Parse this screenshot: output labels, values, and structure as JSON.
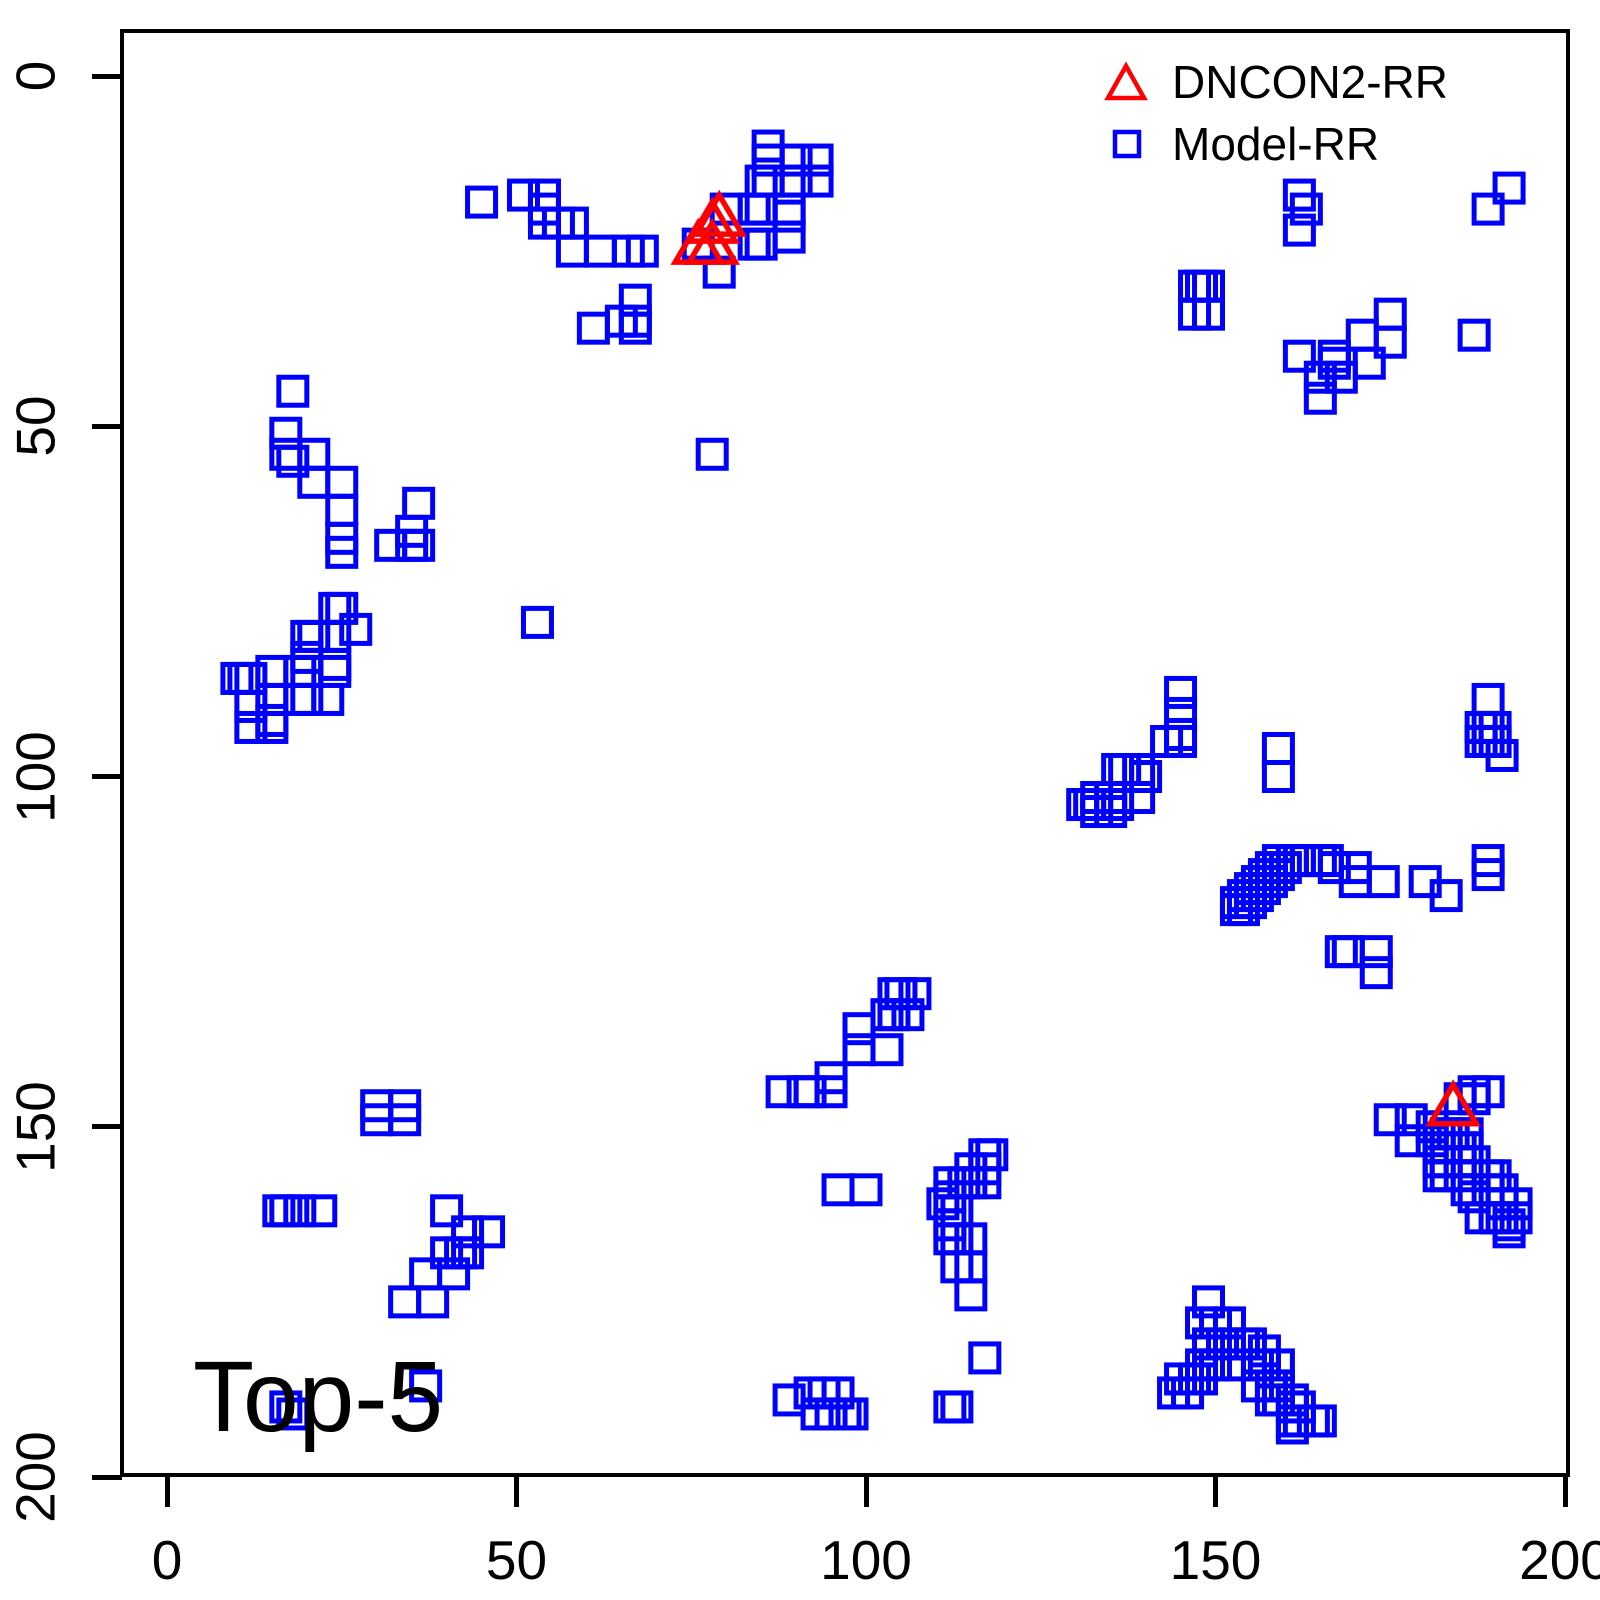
{
  "annotation": {
    "label": "Top-5"
  },
  "legend": {
    "items": [
      {
        "label": "DNCON2-RR",
        "marker": "open-triangle",
        "color": "#FF0000"
      },
      {
        "label": "Model-RR",
        "marker": "open-square",
        "color": "#0000FF"
      }
    ]
  },
  "axes": {
    "x": {
      "ticks": [
        0,
        50,
        100,
        150,
        200
      ],
      "range": [
        0,
        200
      ]
    },
    "y": {
      "ticks": [
        0,
        50,
        100,
        150,
        200
      ],
      "range": [
        0,
        200
      ],
      "inverted": true
    }
  },
  "chart_data": {
    "type": "scatter",
    "title": "",
    "annotation": "Top-5",
    "xlabel": "",
    "ylabel": "",
    "xlim": [
      0,
      200
    ],
    "ylim": [
      200,
      0
    ],
    "x_ticks": [
      0,
      50,
      100,
      150,
      200
    ],
    "y_ticks": [
      0,
      50,
      100,
      150,
      200
    ],
    "grid": false,
    "legend_position": "top-right",
    "series": [
      {
        "name": "DNCON2-RR",
        "marker": "open-triangle",
        "color": "#FF0000",
        "points": [
          [
            78,
            21
          ],
          [
            79,
            20
          ],
          [
            76,
            24
          ],
          [
            78,
            24
          ],
          [
            184,
            147
          ]
        ]
      },
      {
        "name": "Model-RR",
        "marker": "open-square",
        "color": "#0000FF",
        "points": [
          [
            45,
            18
          ],
          [
            51,
            17
          ],
          [
            54,
            17
          ],
          [
            54,
            19
          ],
          [
            54,
            21
          ],
          [
            56,
            21
          ],
          [
            58,
            21
          ],
          [
            58,
            25
          ],
          [
            62,
            25
          ],
          [
            66,
            25
          ],
          [
            68,
            25
          ],
          [
            61,
            36
          ],
          [
            65,
            35
          ],
          [
            67,
            32
          ],
          [
            67,
            35
          ],
          [
            67,
            36
          ],
          [
            76,
            24
          ],
          [
            79,
            28
          ],
          [
            80,
            19
          ],
          [
            84,
            19
          ],
          [
            85,
            19
          ],
          [
            89,
            19
          ],
          [
            89,
            20
          ],
          [
            84,
            24
          ],
          [
            85,
            24
          ],
          [
            89,
            23
          ],
          [
            85,
            15
          ],
          [
            86,
            15
          ],
          [
            90,
            15
          ],
          [
            93,
            15
          ],
          [
            86,
            10
          ],
          [
            86,
            12
          ],
          [
            90,
            12
          ],
          [
            93,
            12
          ],
          [
            78,
            54
          ],
          [
            53,
            78
          ],
          [
            162,
            17
          ],
          [
            163,
            19
          ],
          [
            162,
            22
          ],
          [
            189,
            19
          ],
          [
            192,
            16
          ],
          [
            147,
            30
          ],
          [
            148,
            30
          ],
          [
            149,
            30
          ],
          [
            147,
            34
          ],
          [
            149,
            34
          ],
          [
            175,
            34
          ],
          [
            171,
            37
          ],
          [
            175,
            38
          ],
          [
            187,
            37
          ],
          [
            162,
            40
          ],
          [
            167,
            40
          ],
          [
            167,
            41
          ],
          [
            172,
            41
          ],
          [
            165,
            43
          ],
          [
            168,
            43
          ],
          [
            165,
            46
          ],
          [
            18,
            45
          ],
          [
            17,
            51
          ],
          [
            17,
            54
          ],
          [
            18,
            55
          ],
          [
            21,
            54
          ],
          [
            21,
            58
          ],
          [
            25,
            58
          ],
          [
            25,
            62
          ],
          [
            25,
            66
          ],
          [
            25,
            68
          ],
          [
            36,
            61
          ],
          [
            35,
            65
          ],
          [
            32,
            67
          ],
          [
            35,
            67
          ],
          [
            36,
            67
          ],
          [
            24,
            76
          ],
          [
            25,
            76
          ],
          [
            27,
            79
          ],
          [
            20,
            80
          ],
          [
            21,
            80
          ],
          [
            24,
            80
          ],
          [
            20,
            83
          ],
          [
            24,
            84
          ],
          [
            24,
            85
          ],
          [
            19,
            85
          ],
          [
            20,
            85
          ],
          [
            15,
            85
          ],
          [
            10,
            86
          ],
          [
            11,
            86
          ],
          [
            12,
            86
          ],
          [
            15,
            89
          ],
          [
            19,
            89
          ],
          [
            20,
            89
          ],
          [
            23,
            89
          ],
          [
            12,
            90
          ],
          [
            15,
            92
          ],
          [
            12,
            93
          ],
          [
            15,
            93
          ],
          [
            145,
            88
          ],
          [
            145,
            91
          ],
          [
            145,
            94
          ],
          [
            143,
            95
          ],
          [
            145,
            95
          ],
          [
            159,
            96
          ],
          [
            159,
            100
          ],
          [
            136,
            99
          ],
          [
            137,
            99
          ],
          [
            139,
            99
          ],
          [
            140,
            100
          ],
          [
            139,
            103
          ],
          [
            133,
            103
          ],
          [
            135,
            103
          ],
          [
            131,
            104
          ],
          [
            132,
            104
          ],
          [
            136,
            104
          ],
          [
            133,
            105
          ],
          [
            135,
            105
          ],
          [
            189,
            89
          ],
          [
            188,
            93
          ],
          [
            189,
            93
          ],
          [
            190,
            93
          ],
          [
            188,
            95
          ],
          [
            189,
            95
          ],
          [
            190,
            95
          ],
          [
            191,
            97
          ],
          [
            153,
            118
          ],
          [
            153,
            119
          ],
          [
            154,
            117
          ],
          [
            154,
            119
          ],
          [
            155,
            116
          ],
          [
            155,
            118
          ],
          [
            156,
            115
          ],
          [
            156,
            117
          ],
          [
            157,
            114
          ],
          [
            157,
            116
          ],
          [
            158,
            113
          ],
          [
            158,
            115
          ],
          [
            159,
            112
          ],
          [
            159,
            114
          ],
          [
            160,
            113
          ],
          [
            161,
            112
          ],
          [
            162,
            112
          ],
          [
            163,
            112
          ],
          [
            165,
            112
          ],
          [
            166,
            112
          ],
          [
            167,
            113
          ],
          [
            170,
            113
          ],
          [
            170,
            115
          ],
          [
            174,
            115
          ],
          [
            183,
            117
          ],
          [
            189,
            112
          ],
          [
            189,
            114
          ],
          [
            180,
            115
          ],
          [
            168,
            125
          ],
          [
            169,
            125
          ],
          [
            173,
            125
          ],
          [
            173,
            128
          ],
          [
            104,
            131
          ],
          [
            105,
            131
          ],
          [
            107,
            131
          ],
          [
            103,
            134
          ],
          [
            104,
            134
          ],
          [
            106,
            134
          ],
          [
            99,
            136
          ],
          [
            99,
            139
          ],
          [
            103,
            139
          ],
          [
            95,
            143
          ],
          [
            88,
            145
          ],
          [
            91,
            145
          ],
          [
            92,
            145
          ],
          [
            95,
            145
          ],
          [
            30,
            147
          ],
          [
            30,
            149
          ],
          [
            34,
            147
          ],
          [
            34,
            149
          ],
          [
            16,
            162
          ],
          [
            17,
            162
          ],
          [
            19,
            162
          ],
          [
            22,
            162
          ],
          [
            40,
            162
          ],
          [
            43,
            165
          ],
          [
            46,
            165
          ],
          [
            40,
            168
          ],
          [
            42,
            168
          ],
          [
            43,
            168
          ],
          [
            37,
            171
          ],
          [
            41,
            171
          ],
          [
            34,
            175
          ],
          [
            38,
            175
          ],
          [
            117,
            154
          ],
          [
            118,
            154
          ],
          [
            115,
            156
          ],
          [
            117,
            156
          ],
          [
            112,
            158
          ],
          [
            114,
            158
          ],
          [
            115,
            158
          ],
          [
            117,
            158
          ],
          [
            112,
            160
          ],
          [
            111,
            161
          ],
          [
            113,
            162
          ],
          [
            112,
            164
          ],
          [
            112,
            166
          ],
          [
            113,
            166
          ],
          [
            115,
            166
          ],
          [
            113,
            170
          ],
          [
            115,
            170
          ],
          [
            115,
            174
          ],
          [
            96,
            159
          ],
          [
            100,
            159
          ],
          [
            117,
            183
          ],
          [
            149,
            175
          ],
          [
            148,
            178
          ],
          [
            150,
            178
          ],
          [
            152,
            178
          ],
          [
            149,
            181
          ],
          [
            151,
            181
          ],
          [
            152,
            181
          ],
          [
            154,
            181
          ],
          [
            155,
            181
          ],
          [
            157,
            182
          ],
          [
            148,
            184
          ],
          [
            149,
            184
          ],
          [
            150,
            184
          ],
          [
            152,
            184
          ],
          [
            156,
            184
          ],
          [
            157,
            184
          ],
          [
            159,
            184
          ],
          [
            145,
            186
          ],
          [
            147,
            186
          ],
          [
            148,
            186
          ],
          [
            144,
            188
          ],
          [
            146,
            188
          ],
          [
            156,
            187
          ],
          [
            158,
            187
          ],
          [
            159,
            187
          ],
          [
            158,
            189
          ],
          [
            159,
            189
          ],
          [
            161,
            189
          ],
          [
            161,
            190
          ],
          [
            162,
            190
          ],
          [
            161,
            192
          ],
          [
            162,
            192
          ],
          [
            164,
            192
          ],
          [
            165,
            192
          ],
          [
            161,
            193
          ],
          [
            175,
            149
          ],
          [
            178,
            149
          ],
          [
            181,
            150
          ],
          [
            178,
            152
          ],
          [
            181,
            152
          ],
          [
            183,
            151
          ],
          [
            184,
            151
          ],
          [
            186,
            151
          ],
          [
            182,
            153
          ],
          [
            183,
            153
          ],
          [
            185,
            153
          ],
          [
            186,
            153
          ],
          [
            182,
            155
          ],
          [
            183,
            155
          ],
          [
            185,
            155
          ],
          [
            187,
            155
          ],
          [
            182,
            157
          ],
          [
            183,
            157
          ],
          [
            185,
            157
          ],
          [
            189,
            157
          ],
          [
            190,
            157
          ],
          [
            186,
            159
          ],
          [
            187,
            160
          ],
          [
            189,
            159
          ],
          [
            191,
            159
          ],
          [
            191,
            161
          ],
          [
            193,
            161
          ],
          [
            188,
            163
          ],
          [
            190,
            163
          ],
          [
            191,
            163
          ],
          [
            193,
            163
          ],
          [
            192,
            164
          ],
          [
            192,
            165
          ],
          [
            185,
            146
          ],
          [
            187,
            146
          ],
          [
            187,
            145
          ],
          [
            189,
            145
          ],
          [
            89,
            189
          ],
          [
            92,
            188
          ],
          [
            94,
            188
          ],
          [
            96,
            188
          ],
          [
            93,
            191
          ],
          [
            95,
            191
          ],
          [
            97,
            191
          ],
          [
            98,
            191
          ],
          [
            112,
            190
          ],
          [
            113,
            190
          ],
          [
            17,
            190
          ],
          [
            18,
            191
          ],
          [
            37,
            187
          ]
        ]
      }
    ]
  }
}
